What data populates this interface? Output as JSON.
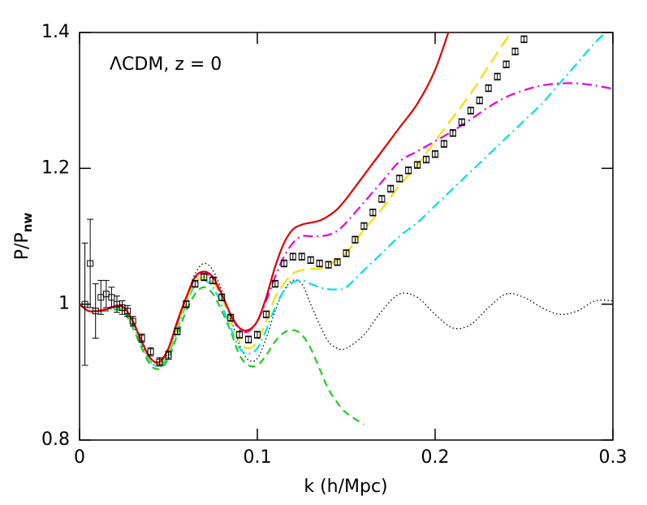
{
  "chart_data": {
    "type": "line",
    "annotation": "ΛCDM, z = 0",
    "xlabel": "k  (h/Mpc)",
    "ylabel": "P/P",
    "ylabel_sub": "nw",
    "xlim": [
      0,
      0.3
    ],
    "ylim": [
      0.8,
      1.4
    ],
    "xticks": [
      0,
      0.1,
      0.2,
      0.3
    ],
    "yticks": [
      0.8,
      1,
      1.2,
      1.4
    ],
    "x": [
      0,
      0.005,
      0.01,
      0.015,
      0.02,
      0.025,
      0.03,
      0.035,
      0.04,
      0.045,
      0.05,
      0.055,
      0.06,
      0.065,
      0.07,
      0.075,
      0.08,
      0.085,
      0.09,
      0.095,
      0.1,
      0.105,
      0.11,
      0.115,
      0.12,
      0.125,
      0.13,
      0.135,
      0.14,
      0.145,
      0.15,
      0.16,
      0.17,
      0.18,
      0.19,
      0.2,
      0.21,
      0.22,
      0.23,
      0.24,
      0.25,
      0.26,
      0.27,
      0.28,
      0.29,
      0.3
    ],
    "series": [
      {
        "color": "#000000",
        "style": "dotted",
        "values": [
          1.0,
          0.99,
          0.99,
          0.992,
          0.995,
          0.99,
          0.97,
          0.94,
          0.915,
          0.91,
          0.93,
          0.97,
          1.01,
          1.045,
          1.06,
          1.05,
          1.02,
          0.98,
          0.94,
          0.918,
          0.92,
          0.95,
          0.99,
          1.02,
          1.035,
          1.03,
          1.0,
          0.97,
          0.945,
          0.935,
          0.935,
          0.955,
          0.99,
          1.015,
          1.01,
          0.985,
          0.965,
          0.97,
          0.995,
          1.015,
          1.01,
          0.995,
          0.985,
          0.99,
          1.005,
          1.005
        ]
      },
      {
        "color": "#22cc22",
        "style": "dashed",
        "values": [
          1.0,
          0.99,
          0.99,
          0.99,
          0.992,
          0.988,
          0.965,
          0.935,
          0.91,
          0.905,
          0.92,
          0.955,
          0.99,
          1.015,
          1.025,
          1.015,
          0.99,
          0.96,
          0.925,
          0.91,
          0.91,
          0.925,
          0.945,
          0.958,
          0.962,
          0.955,
          0.935,
          0.905,
          0.875,
          0.855,
          0.84,
          0.823,
          null,
          null,
          null,
          null,
          null,
          null,
          null,
          null,
          null,
          null,
          null,
          null,
          null,
          null
        ]
      },
      {
        "color": "#00e0e0",
        "style": "dashdot",
        "values": [
          1.0,
          0.99,
          0.99,
          0.991,
          0.994,
          0.99,
          0.968,
          0.94,
          0.915,
          0.908,
          0.925,
          0.962,
          1.0,
          1.028,
          1.035,
          1.025,
          0.998,
          0.965,
          0.935,
          0.927,
          0.935,
          0.962,
          0.995,
          1.02,
          1.032,
          1.035,
          1.03,
          1.025,
          1.022,
          1.022,
          1.025,
          1.05,
          1.075,
          1.1,
          1.12,
          1.145,
          1.17,
          1.195,
          1.22,
          1.245,
          1.27,
          1.295,
          1.325,
          1.355,
          1.385,
          1.41
        ]
      },
      {
        "color": "#f0e000",
        "style": "longdash",
        "values": [
          1.0,
          0.99,
          0.99,
          0.992,
          0.996,
          0.992,
          0.972,
          0.943,
          0.918,
          0.912,
          0.93,
          0.968,
          1.005,
          1.032,
          1.04,
          1.032,
          1.01,
          0.975,
          0.945,
          0.935,
          0.945,
          0.975,
          1.01,
          1.03,
          1.045,
          1.05,
          1.052,
          1.052,
          1.058,
          1.065,
          1.075,
          1.11,
          1.14,
          1.175,
          1.205,
          1.24,
          1.275,
          1.31,
          1.35,
          1.39,
          1.43,
          null,
          null,
          null,
          null,
          null
        ]
      },
      {
        "color": "#e000e0",
        "style": "dashdot",
        "values": [
          1.0,
          0.99,
          0.99,
          0.993,
          0.998,
          0.995,
          0.975,
          0.946,
          0.92,
          0.915,
          0.935,
          0.973,
          1.01,
          1.038,
          1.045,
          1.038,
          1.013,
          0.985,
          0.962,
          0.96,
          0.975,
          1.005,
          1.04,
          1.07,
          1.09,
          1.1,
          1.1,
          1.1,
          1.102,
          1.108,
          1.12,
          1.15,
          1.18,
          1.21,
          1.225,
          1.24,
          1.255,
          1.272,
          1.29,
          1.305,
          1.315,
          1.322,
          1.325,
          1.325,
          1.322,
          1.317
        ]
      },
      {
        "color": "#e00000",
        "style": "solid",
        "values": [
          1.0,
          0.99,
          0.99,
          0.992,
          0.997,
          0.995,
          0.975,
          0.945,
          0.92,
          0.915,
          0.935,
          0.975,
          1.01,
          1.04,
          1.048,
          1.04,
          1.015,
          0.985,
          0.965,
          0.962,
          0.975,
          1.01,
          1.055,
          1.09,
          1.11,
          1.117,
          1.12,
          1.123,
          1.13,
          1.14,
          1.155,
          1.19,
          1.225,
          1.26,
          1.295,
          1.345,
          1.42,
          null,
          null,
          null,
          null,
          null,
          null,
          null,
          null,
          null
        ]
      }
    ],
    "points": {
      "color": "#000000",
      "x": [
        0.003,
        0.006,
        0.009,
        0.012,
        0.015,
        0.018,
        0.021,
        0.024,
        0.027,
        0.03,
        0.035,
        0.04,
        0.045,
        0.05,
        0.055,
        0.06,
        0.065,
        0.07,
        0.075,
        0.08,
        0.085,
        0.09,
        0.095,
        0.1,
        0.105,
        0.11,
        0.115,
        0.12,
        0.125,
        0.13,
        0.135,
        0.14,
        0.145,
        0.15,
        0.155,
        0.16,
        0.165,
        0.17,
        0.175,
        0.18,
        0.185,
        0.19,
        0.195,
        0.2,
        0.205,
        0.21,
        0.215,
        0.22,
        0.225,
        0.23,
        0.235,
        0.24,
        0.245,
        0.25
      ],
      "values": [
        1.0,
        1.06,
        0.99,
        1.01,
        1.015,
        1.01,
        1.0,
        0.995,
        0.99,
        0.975,
        0.95,
        0.93,
        0.915,
        0.925,
        0.96,
        1.0,
        1.03,
        1.04,
        1.035,
        1.01,
        0.98,
        0.955,
        0.948,
        0.955,
        0.985,
        1.03,
        1.06,
        1.07,
        1.07,
        1.065,
        1.06,
        1.058,
        1.062,
        1.075,
        1.095,
        1.115,
        1.135,
        1.155,
        1.17,
        1.185,
        1.197,
        1.205,
        1.213,
        1.221,
        1.236,
        1.252,
        1.268,
        1.285,
        1.3,
        1.318,
        1.335,
        1.353,
        1.372,
        1.39
      ],
      "errors": [
        0.09,
        0.065,
        0.04,
        0.025,
        0.02,
        0.015,
        0.012,
        0.01,
        0.008,
        0.007,
        0.006,
        0.006,
        0.006,
        0.006,
        0.005,
        0.005,
        0.005,
        0.005,
        0.005,
        0.005,
        0.005,
        0.005,
        0.005,
        0.005,
        0.005,
        0.005,
        0.005,
        0.005,
        0.005,
        0.005,
        0.005,
        0.005,
        0.005,
        0.005,
        0.005,
        0.005,
        0.005,
        0.005,
        0.005,
        0.005,
        0.005,
        0.005,
        0.005,
        0.005,
        0.005,
        0.005,
        0.005,
        0.005,
        0.005,
        0.005,
        0.005,
        0.005,
        0.005,
        0.005
      ]
    }
  }
}
